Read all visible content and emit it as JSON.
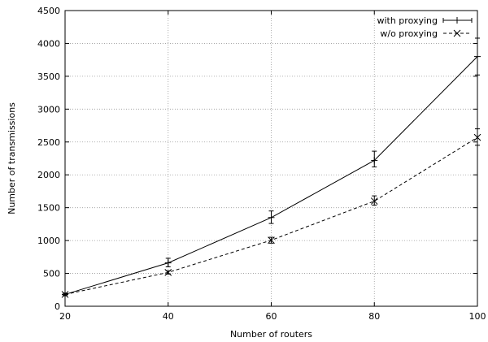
{
  "chart_data": {
    "type": "line",
    "title": "",
    "xlabel": "Number of routers",
    "ylabel": "Number of transmissions",
    "xlim": [
      20,
      100
    ],
    "ylim": [
      0,
      4500
    ],
    "x_ticks": [
      20,
      40,
      60,
      80,
      100
    ],
    "y_ticks": [
      0,
      500,
      1000,
      1500,
      2000,
      2500,
      3000,
      3500,
      4000,
      4500
    ],
    "grid": true,
    "legend_position": "top-right",
    "series": [
      {
        "name": "with proxying",
        "line_style": "solid",
        "marker": "plus",
        "color": "#000000",
        "points": [
          {
            "x": 20,
            "y": 180,
            "err_low": 160,
            "err_high": 200
          },
          {
            "x": 40,
            "y": 660,
            "err_low": 600,
            "err_high": 730
          },
          {
            "x": 60,
            "y": 1350,
            "err_low": 1260,
            "err_high": 1450
          },
          {
            "x": 80,
            "y": 2220,
            "err_low": 2120,
            "err_high": 2360
          },
          {
            "x": 100,
            "y": 3800,
            "err_low": 3520,
            "err_high": 4080
          }
        ]
      },
      {
        "name": "w/o proxying",
        "line_style": "dashed",
        "marker": "cross",
        "color": "#000000",
        "points": [
          {
            "x": 20,
            "y": 180,
            "err_low": 165,
            "err_high": 195
          },
          {
            "x": 40,
            "y": 515,
            "err_low": 490,
            "err_high": 540
          },
          {
            "x": 60,
            "y": 1005,
            "err_low": 960,
            "err_high": 1050
          },
          {
            "x": 80,
            "y": 1600,
            "err_low": 1540,
            "err_high": 1680
          },
          {
            "x": 100,
            "y": 2570,
            "err_low": 2450,
            "err_high": 2700
          }
        ]
      }
    ]
  }
}
